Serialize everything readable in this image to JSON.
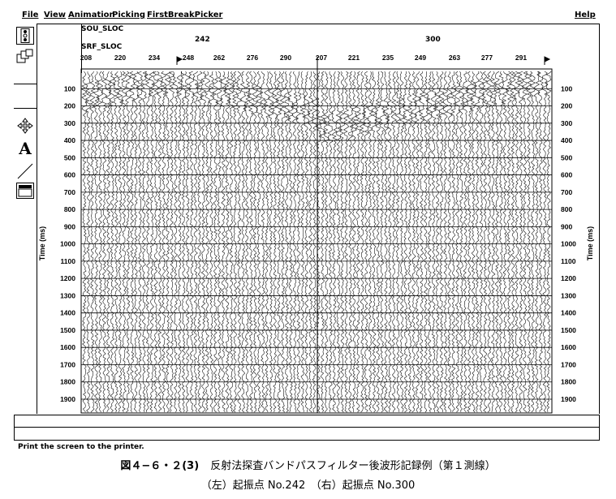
{
  "menu": {
    "file": "File",
    "view": "View",
    "animation": "Animation",
    "picking": "Picking",
    "firstbreak": "FirstBreakPicker",
    "help": "Help"
  },
  "tools": [
    {
      "name": "traffic-light-icon"
    },
    {
      "name": "windows-icon"
    },
    {
      "name": "move-cross-icon"
    },
    {
      "name": "text-A-icon",
      "glyph": "A"
    },
    {
      "name": "dx-dt-icon"
    },
    {
      "name": "rms-icon"
    }
  ],
  "header": {
    "sou_label": "SOU_SLOC",
    "srf_label": "SRF_SLOC",
    "shot_left": "242",
    "shot_right": "300"
  },
  "chart_data": {
    "type": "seismic-gather",
    "x_tick_labels_left": [
      "208",
      "220",
      "234",
      "248",
      "262",
      "276",
      "290"
    ],
    "x_tick_labels_right": [
      "207",
      "221",
      "235",
      "249",
      "263",
      "277",
      "291"
    ],
    "y_ticks": [
      100,
      200,
      300,
      400,
      500,
      600,
      700,
      800,
      900,
      1000,
      1100,
      1200,
      1300,
      1400,
      1500,
      1600,
      1700,
      1800,
      1900
    ],
    "ylabel": "Time (ms)",
    "ylim": [
      0,
      1980
    ]
  },
  "status": "Print the screen to the printer.",
  "caption": {
    "line1_bold": "図４−６・２(3)",
    "line1": "反射法探査バンドパスフィルター後波形記録例（第１測線）",
    "line2": "（左）起振点 No.242　（右）起振点 No.300"
  }
}
